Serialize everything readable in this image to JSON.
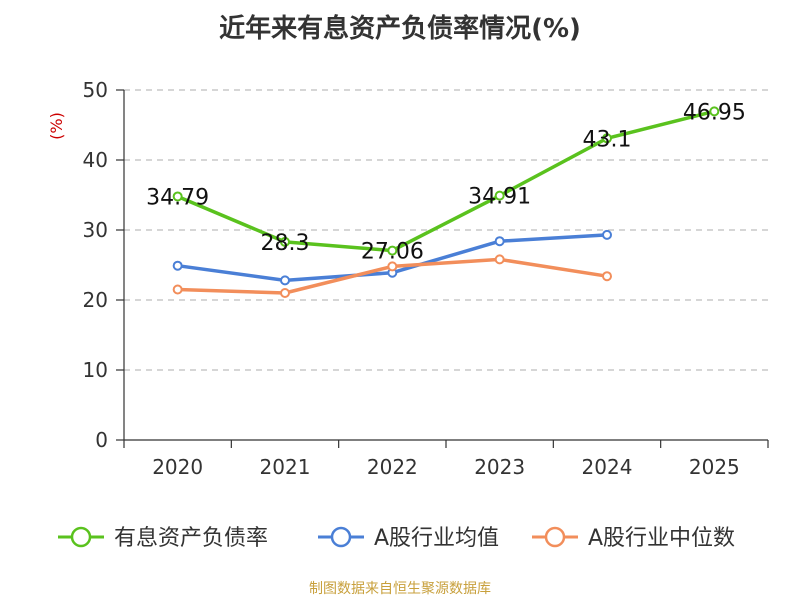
{
  "chart_data": {
    "type": "line",
    "title": "近年来有息资产负债率情况(%)",
    "ylabel": "(%)",
    "xlabel": "",
    "categories": [
      "2020",
      "2021",
      "2022",
      "2023",
      "2024",
      "2025"
    ],
    "ylim": [
      0,
      50
    ],
    "yticks": [
      0,
      10,
      20,
      30,
      40,
      50
    ],
    "grid": true,
    "legend_position": "bottom",
    "series": [
      {
        "name": "有息资产负债率",
        "color": "#5ac21e",
        "values": [
          34.79,
          28.3,
          27.06,
          34.91,
          43.1,
          46.95
        ],
        "labels": [
          "34.79",
          "28.3",
          "27.06",
          "34.91",
          "43.1",
          "46.95"
        ]
      },
      {
        "name": "A股行业均值",
        "color": "#4a7fd6",
        "values": [
          24.9,
          22.8,
          23.9,
          28.4,
          29.3,
          null
        ]
      },
      {
        "name": "A股行业中位数",
        "color": "#f28e5b",
        "values": [
          21.5,
          21.0,
          24.8,
          25.8,
          23.4,
          null
        ]
      }
    ]
  },
  "footer": {
    "source": "制图数据来自恒生聚源数据库"
  }
}
